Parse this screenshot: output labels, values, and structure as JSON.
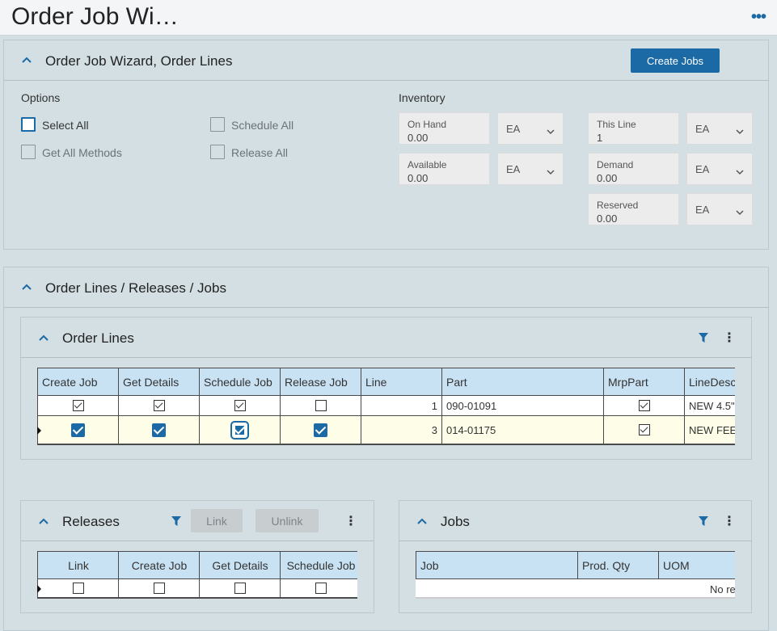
{
  "window": {
    "title": "Order Job Wi…"
  },
  "wizard": {
    "header": "Order Job Wizard, Order Lines",
    "create_jobs_label": "Create Jobs",
    "options": {
      "heading": "Options",
      "select_all": "Select All",
      "schedule_all": "Schedule All",
      "get_all_methods": "Get All Methods",
      "release_all": "Release All"
    },
    "inventory": {
      "heading": "Inventory",
      "on_hand": {
        "label": "On Hand",
        "value": "0.00",
        "uom": "EA"
      },
      "available": {
        "label": "Available",
        "value": "0.00",
        "uom": "EA"
      },
      "this_line": {
        "label": "This Line",
        "value": "1",
        "uom": "EA"
      },
      "demand": {
        "label": "Demand",
        "value": "0.00",
        "uom": "EA"
      },
      "reserved": {
        "label": "Reserved",
        "value": "0.00",
        "uom": "EA"
      }
    }
  },
  "olrj": {
    "header": "Order Lines / Releases / Jobs"
  },
  "order_lines": {
    "header": "Order Lines",
    "columns": [
      "Create Job",
      "Get Details",
      "Schedule Job",
      "Release Job",
      "Line",
      "Part",
      "MrpPart",
      "LineDesc"
    ],
    "rows": [
      {
        "create_job": true,
        "get_details": true,
        "schedule_job": true,
        "release_job": false,
        "line": "1",
        "part": "090-01091",
        "mrp_part": true,
        "line_desc": "NEW 4.5\""
      },
      {
        "create_job": true,
        "get_details": true,
        "schedule_job": true,
        "release_job": true,
        "line": "3",
        "part": "014-01175",
        "mrp_part": true,
        "line_desc": "NEW FEED"
      }
    ]
  },
  "releases": {
    "header": "Releases",
    "link_label": "Link",
    "unlink_label": "Unlink",
    "columns": [
      "Link",
      "Create Job",
      "Get Details",
      "Schedule Job"
    ]
  },
  "jobs": {
    "header": "Jobs",
    "columns": [
      "Job",
      "Prod. Qty",
      "UOM"
    ],
    "empty_text": "No re"
  },
  "colors": {
    "accent": "#1b6aa5",
    "panel_bg": "#d3dfe3",
    "header_cell": "#c9e2f3",
    "selected_row": "#fdfde8"
  }
}
